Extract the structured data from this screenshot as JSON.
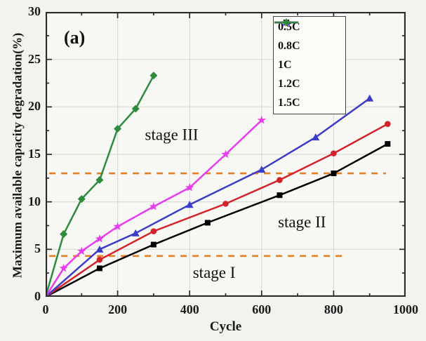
{
  "figure_label": "(a)",
  "chart_data": {
    "type": "line",
    "title": "",
    "xlabel": "Cycle",
    "ylabel": "Maximum available capacity degradation(%)",
    "xlim": [
      0,
      1000
    ],
    "ylim": [
      0,
      30
    ],
    "xticks": [
      0,
      200,
      400,
      600,
      800,
      1000
    ],
    "yticks": [
      0,
      5,
      10,
      15,
      20,
      25,
      30
    ],
    "x_minor_ticks": [
      100,
      300,
      500,
      700,
      900
    ],
    "y_minor_ticks": [
      2.5,
      7.5,
      12.5,
      17.5,
      22.5,
      27.5
    ],
    "grid": true,
    "legend_position": "upper-right-inside",
    "series": [
      {
        "name": "0.5C",
        "color": "#000000",
        "marker": "square",
        "x": [
          0,
          150,
          300,
          450,
          650,
          800,
          950
        ],
        "y": [
          0,
          3.0,
          5.5,
          7.8,
          10.7,
          13.0,
          16.1
        ]
      },
      {
        "name": "0.8C",
        "color": "#d2232a",
        "marker": "circle",
        "x": [
          0,
          150,
          300,
          500,
          650,
          800,
          950
        ],
        "y": [
          0,
          3.9,
          6.9,
          9.8,
          12.3,
          15.1,
          18.2
        ]
      },
      {
        "name": "1C",
        "color": "#3c3cc8",
        "marker": "triangle",
        "x": [
          0,
          150,
          250,
          400,
          600,
          750,
          900
        ],
        "y": [
          0,
          5.0,
          6.7,
          9.7,
          13.4,
          16.8,
          20.9
        ]
      },
      {
        "name": "1.2C",
        "color": "#e73bee",
        "marker": "star",
        "x": [
          0,
          50,
          100,
          150,
          200,
          300,
          400,
          500,
          600
        ],
        "y": [
          0,
          3.0,
          4.8,
          6.1,
          7.4,
          9.5,
          11.5,
          15.0,
          18.6
        ]
      },
      {
        "name": "1.5C",
        "color": "#2e8b3e",
        "marker": "diamond",
        "x": [
          0,
          50,
          100,
          150,
          200,
          250,
          300
        ],
        "y": [
          0,
          6.6,
          10.3,
          12.3,
          17.7,
          19.8,
          23.3
        ]
      }
    ],
    "reference_lines": [
      {
        "y": 13.0,
        "x_start": 10,
        "x_end": 945,
        "style": "dashed",
        "color": "#e0802b"
      },
      {
        "y": 4.3,
        "x_start": 10,
        "x_end": 830,
        "style": "dashed",
        "color": "#e0802b"
      }
    ],
    "annotations": [
      {
        "text": "stage III",
        "x": 350,
        "y": 16.5
      },
      {
        "text": "stage II",
        "x": 712,
        "y": 7.3
      },
      {
        "text": "stage I",
        "x": 468,
        "y": 2.0
      }
    ]
  },
  "colors": {
    "grid": "#dbdbd5",
    "spine": "#2a2a2a",
    "figure_bg": "#f2f2ee",
    "plot_bg": "#f7f7f4"
  }
}
